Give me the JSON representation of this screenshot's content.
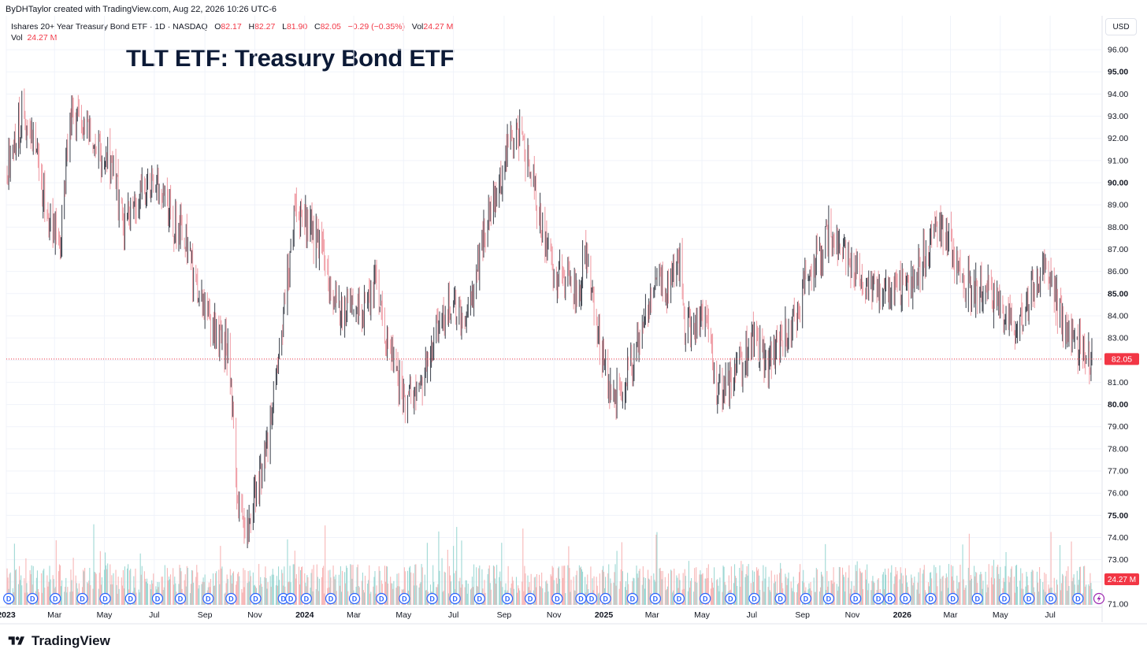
{
  "header": {
    "attribution": "ByDHTaylor created with TradingView.com, Aug 22, 2026 10:26 UTC-6"
  },
  "legend": {
    "symbol": "Ishares 20+ Year Treasury Bond ETF · 1D · NASDAQ",
    "open_label": "O",
    "open": "82.17",
    "high_label": "H",
    "high": "82.27",
    "low_label": "L",
    "low": "81.90",
    "close_label": "C",
    "close": "82.05",
    "change": "−0.29 (−0.35%)",
    "vol_label": "Vol",
    "vol": "24.27 M",
    "vol_row_label": "Vol",
    "vol_row_value": "24.27 M"
  },
  "currency_button": "USD",
  "brand_name": "TradingView",
  "colors": {
    "up": "#4a4f59",
    "down": "#f0a0a8",
    "vol_up": "#9ed8d4",
    "vol_down": "#f7b6b6",
    "price_tag": "#f23645",
    "dividend_marker": "#2962ff",
    "title": "#0c1a36"
  },
  "icons": [
    "dividend-marker-icon",
    "flash-icon",
    "tradingview-logo-icon"
  ],
  "chart_data": {
    "type": "candlestick",
    "title": "TLT ETF: Treasury Bond ETF",
    "ylim": [
      71,
      96.5
    ],
    "y_ticks": [
      "96.00",
      "95.00",
      "94.00",
      "93.00",
      "92.00",
      "91.00",
      "90.00",
      "89.00",
      "88.00",
      "87.00",
      "86.00",
      "85.00",
      "84.00",
      "83.00",
      "82.00",
      "81.00",
      "80.00",
      "79.00",
      "78.00",
      "77.00",
      "76.00",
      "75.00",
      "74.00",
      "73.00",
      "72.00",
      "71.00"
    ],
    "y_bold_ticks": [
      "95.00",
      "90.00",
      "85.00",
      "80.00",
      "75.00"
    ],
    "x_ticks": [
      {
        "label": "2023",
        "date": "2023-01-01",
        "bold": true
      },
      {
        "label": "Mar",
        "date": "2023-03-01"
      },
      {
        "label": "May",
        "date": "2023-05-01"
      },
      {
        "label": "Jul",
        "date": "2023-07-01"
      },
      {
        "label": "Sep",
        "date": "2023-09-01"
      },
      {
        "label": "Nov",
        "date": "2023-11-01"
      },
      {
        "label": "2024",
        "date": "2024-01-01",
        "bold": true
      },
      {
        "label": "Mar",
        "date": "2024-03-01"
      },
      {
        "label": "May",
        "date": "2024-05-01"
      },
      {
        "label": "Jul",
        "date": "2024-07-01"
      },
      {
        "label": "Sep",
        "date": "2024-09-01"
      },
      {
        "label": "Nov",
        "date": "2024-11-01"
      },
      {
        "label": "2025",
        "date": "2025-01-01",
        "bold": true
      },
      {
        "label": "Mar",
        "date": "2025-03-01"
      },
      {
        "label": "May",
        "date": "2025-05-01"
      },
      {
        "label": "Jul",
        "date": "2025-07-01"
      },
      {
        "label": "Sep",
        "date": "2025-09-01"
      },
      {
        "label": "Nov",
        "date": "2025-11-01"
      },
      {
        "label": "2026",
        "date": "2026-01-01",
        "bold": true
      },
      {
        "label": "Mar",
        "date": "2026-03-01"
      },
      {
        "label": "May",
        "date": "2026-05-01"
      },
      {
        "label": "Jul",
        "date": "2026-07-01"
      }
    ],
    "x_range": [
      "2023-01-01",
      "2026-08-21"
    ],
    "last_price": 82.05,
    "last_price_label": "82.05",
    "last_volume_label": "24.27 M",
    "price_path": [
      [
        "2023-01-01",
        90.5
      ],
      [
        "2023-01-20",
        93.0
      ],
      [
        "2023-02-05",
        92.0
      ],
      [
        "2023-02-20",
        88.5
      ],
      [
        "2023-03-08",
        87.5
      ],
      [
        "2023-03-20",
        93.0
      ],
      [
        "2023-04-06",
        92.8
      ],
      [
        "2023-04-20",
        91.5
      ],
      [
        "2023-05-10",
        90.8
      ],
      [
        "2023-05-26",
        88.0
      ],
      [
        "2023-06-15",
        89.5
      ],
      [
        "2023-07-01",
        90.5
      ],
      [
        "2023-07-20",
        88.5
      ],
      [
        "2023-08-08",
        87.5
      ],
      [
        "2023-08-25",
        84.5
      ],
      [
        "2023-09-10",
        83.5
      ],
      [
        "2023-09-30",
        82.5
      ],
      [
        "2023-10-10",
        76.0
      ],
      [
        "2023-10-22",
        74.5
      ],
      [
        "2023-11-05",
        76.5
      ],
      [
        "2023-11-20",
        79.0
      ],
      [
        "2023-12-06",
        84.0
      ],
      [
        "2023-12-20",
        88.5
      ],
      [
        "2024-01-08",
        88.0
      ],
      [
        "2024-01-25",
        86.5
      ],
      [
        "2024-02-10",
        84.0
      ],
      [
        "2024-02-28",
        84.5
      ],
      [
        "2024-03-15",
        84.5
      ],
      [
        "2024-03-28",
        85.5
      ],
      [
        "2024-04-12",
        82.5
      ],
      [
        "2024-04-30",
        80.5
      ],
      [
        "2024-05-12",
        80.0
      ],
      [
        "2024-05-28",
        81.5
      ],
      [
        "2024-06-14",
        83.5
      ],
      [
        "2024-06-30",
        84.8
      ],
      [
        "2024-07-15",
        83.5
      ],
      [
        "2024-08-01",
        86.5
      ],
      [
        "2024-08-15",
        89.0
      ],
      [
        "2024-09-01",
        90.8
      ],
      [
        "2024-09-16",
        92.5
      ],
      [
        "2024-10-01",
        91.0
      ],
      [
        "2024-10-15",
        88.5
      ],
      [
        "2024-10-30",
        86.0
      ],
      [
        "2024-11-15",
        85.5
      ],
      [
        "2024-12-01",
        85.0
      ],
      [
        "2024-12-10",
        87.0
      ],
      [
        "2024-12-28",
        82.5
      ],
      [
        "2025-01-13",
        80.0
      ],
      [
        "2025-02-01",
        81.5
      ],
      [
        "2025-02-20",
        84.0
      ],
      [
        "2025-03-05",
        86.0
      ],
      [
        "2025-03-20",
        85.0
      ],
      [
        "2025-04-04",
        86.5
      ],
      [
        "2025-04-10",
        83.5
      ],
      [
        "2025-04-22",
        83.5
      ],
      [
        "2025-05-05",
        84.0
      ],
      [
        "2025-05-20",
        80.5
      ],
      [
        "2025-06-05",
        81.0
      ],
      [
        "2025-06-20",
        82.0
      ],
      [
        "2025-07-05",
        83.0
      ],
      [
        "2025-07-20",
        81.5
      ],
      [
        "2025-08-05",
        83.0
      ],
      [
        "2025-08-20",
        83.5
      ],
      [
        "2025-09-05",
        85.5
      ],
      [
        "2025-09-20",
        86.5
      ],
      [
        "2025-10-06",
        88.0
      ],
      [
        "2025-10-20",
        87.0
      ],
      [
        "2025-11-05",
        86.0
      ],
      [
        "2025-11-20",
        85.5
      ],
      [
        "2025-12-05",
        85.0
      ],
      [
        "2025-12-20",
        85.0
      ],
      [
        "2026-01-10",
        85.5
      ],
      [
        "2026-01-25",
        86.5
      ],
      [
        "2026-02-10",
        88.0
      ],
      [
        "2026-02-25",
        87.5
      ],
      [
        "2026-03-12",
        86.0
      ],
      [
        "2026-03-28",
        85.0
      ],
      [
        "2026-04-12",
        85.5
      ],
      [
        "2026-04-28",
        84.5
      ],
      [
        "2026-05-12",
        84.0
      ],
      [
        "2026-05-25",
        83.5
      ],
      [
        "2026-06-10",
        85.5
      ],
      [
        "2026-06-25",
        86.5
      ],
      [
        "2026-07-10",
        84.5
      ],
      [
        "2026-07-25",
        83.0
      ],
      [
        "2026-08-10",
        82.5
      ],
      [
        "2026-08-21",
        82.05
      ]
    ],
    "dividend_dates": [
      "2023-01-04",
      "2023-02-02",
      "2023-03-02",
      "2023-04-04",
      "2023-05-02",
      "2023-06-02",
      "2023-07-05",
      "2023-08-02",
      "2023-09-05",
      "2023-10-03",
      "2023-11-02",
      "2023-12-06",
      "2023-12-15",
      "2024-01-03",
      "2024-02-02",
      "2024-03-02",
      "2024-04-04",
      "2024-05-02",
      "2024-06-05",
      "2024-07-03",
      "2024-08-02",
      "2024-09-05",
      "2024-10-03",
      "2024-11-05",
      "2024-12-04",
      "2024-12-17",
      "2025-01-03",
      "2025-02-05",
      "2025-03-05",
      "2025-04-03",
      "2025-05-05",
      "2025-06-05",
      "2025-07-04",
      "2025-08-05",
      "2025-09-05",
      "2025-10-03",
      "2025-11-05",
      "2025-12-03",
      "2025-12-17",
      "2026-01-05",
      "2026-02-05",
      "2026-03-04",
      "2026-04-03",
      "2026-05-06",
      "2026-06-05",
      "2026-07-02",
      "2026-08-04"
    ],
    "dividend_marker_label": "D"
  }
}
